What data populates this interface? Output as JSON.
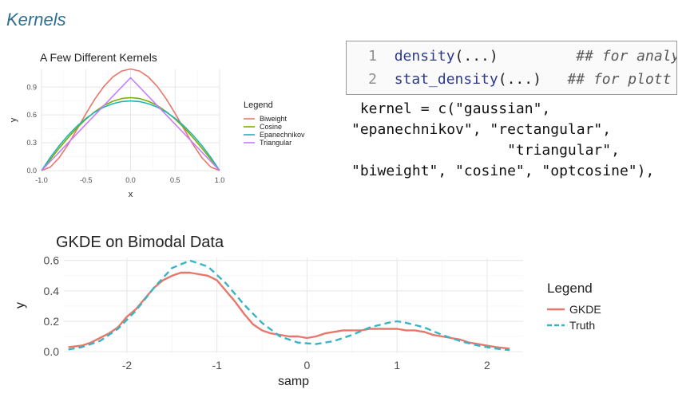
{
  "slide": {
    "title": "Kernels"
  },
  "code": {
    "lines": [
      {
        "num": "1",
        "fn": "density",
        "args": "(...)",
        "comment": "## for analy"
      },
      {
        "num": "2",
        "fn": "stat_density",
        "args": "(...)",
        "comment": "## for plott"
      }
    ],
    "kernel_text": " kernel = c(\"gaussian\",\n\"epanechnikov\", \"rectangular\",\n                  \"triangular\",\n\"biweight\", \"cosine\", \"optcosine\"),"
  },
  "chart_data": [
    {
      "type": "line",
      "title": "A Few Different Kernels",
      "xlabel": "x",
      "ylabel": "y",
      "xlim": [
        -1.0,
        1.0
      ],
      "ylim": [
        0,
        1.09
      ],
      "xticks": [
        "-1.0",
        "-0.5",
        "0.0",
        "0.5",
        "1.0"
      ],
      "yticks": [
        "0.0",
        "0.3",
        "0.6",
        "0.9"
      ],
      "grid": true,
      "legend": {
        "title": "Legend",
        "placement": "right"
      },
      "series": [
        {
          "name": "Biweight",
          "color": "#e8776b",
          "x": [
            -1.0,
            -0.9,
            -0.8,
            -0.7,
            -0.6,
            -0.5,
            -0.4,
            -0.3,
            -0.2,
            -0.1,
            0.0,
            0.1,
            0.2,
            0.3,
            0.4,
            0.5,
            0.6,
            0.7,
            0.8,
            0.9,
            1.0
          ],
          "y": [
            0.0,
            0.039,
            0.141,
            0.284,
            0.448,
            0.615,
            0.772,
            0.906,
            1.008,
            1.072,
            1.094,
            1.072,
            1.008,
            0.906,
            0.772,
            0.615,
            0.448,
            0.284,
            0.141,
            0.039,
            0.0
          ]
        },
        {
          "name": "Cosine",
          "color": "#7cae00",
          "x": [
            -1.0,
            -0.9,
            -0.8,
            -0.7,
            -0.6,
            -0.5,
            -0.4,
            -0.3,
            -0.2,
            -0.1,
            0.0,
            0.1,
            0.2,
            0.3,
            0.4,
            0.5,
            0.6,
            0.7,
            0.8,
            0.9,
            1.0
          ],
          "y": [
            0.0,
            0.123,
            0.243,
            0.357,
            0.462,
            0.555,
            0.635,
            0.7,
            0.747,
            0.776,
            0.785,
            0.776,
            0.747,
            0.7,
            0.635,
            0.555,
            0.462,
            0.357,
            0.243,
            0.123,
            0.0
          ]
        },
        {
          "name": "Epanechnikov",
          "color": "#1fb5b8",
          "x": [
            -1.0,
            -0.9,
            -0.8,
            -0.7,
            -0.6,
            -0.5,
            -0.4,
            -0.3,
            -0.2,
            -0.1,
            0.0,
            0.1,
            0.2,
            0.3,
            0.4,
            0.5,
            0.6,
            0.7,
            0.8,
            0.9,
            1.0
          ],
          "y": [
            0.0,
            0.143,
            0.27,
            0.383,
            0.48,
            0.563,
            0.63,
            0.683,
            0.72,
            0.743,
            0.75,
            0.743,
            0.72,
            0.683,
            0.63,
            0.563,
            0.48,
            0.383,
            0.27,
            0.143,
            0.0
          ]
        },
        {
          "name": "Triangular",
          "color": "#c77cff",
          "x": [
            -1.0,
            0.0,
            1.0
          ],
          "y": [
            0.0,
            1.0,
            0.0
          ]
        }
      ]
    },
    {
      "type": "line",
      "title": "GKDE on Bimodal Data",
      "xlabel": "samp",
      "ylabel": "y",
      "xlim": [
        -2.7,
        2.4
      ],
      "ylim": [
        -0.01,
        0.62
      ],
      "xticks": [
        "-2",
        "-1",
        "0",
        "1",
        "2"
      ],
      "yticks": [
        "0.0",
        "0.2",
        "0.4",
        "0.6"
      ],
      "grid": true,
      "legend": {
        "title": "Legend",
        "placement": "right"
      },
      "series": [
        {
          "name": "GKDE",
          "color": "#e8776b",
          "dashed": false,
          "x": [
            -2.65,
            -2.5,
            -2.4,
            -2.3,
            -2.2,
            -2.1,
            -2.0,
            -1.9,
            -1.8,
            -1.7,
            -1.6,
            -1.5,
            -1.4,
            -1.3,
            -1.2,
            -1.1,
            -1.0,
            -0.9,
            -0.8,
            -0.7,
            -0.6,
            -0.5,
            -0.4,
            -0.3,
            -0.2,
            -0.1,
            0.0,
            0.1,
            0.2,
            0.3,
            0.4,
            0.5,
            0.6,
            0.7,
            0.8,
            0.9,
            1.0,
            1.1,
            1.2,
            1.3,
            1.4,
            1.5,
            1.6,
            1.7,
            1.8,
            1.9,
            2.0,
            2.1,
            2.25
          ],
          "y": [
            0.03,
            0.04,
            0.06,
            0.09,
            0.12,
            0.16,
            0.23,
            0.28,
            0.35,
            0.42,
            0.47,
            0.5,
            0.52,
            0.52,
            0.51,
            0.5,
            0.47,
            0.4,
            0.33,
            0.25,
            0.18,
            0.14,
            0.12,
            0.11,
            0.1,
            0.1,
            0.09,
            0.1,
            0.12,
            0.13,
            0.14,
            0.14,
            0.14,
            0.15,
            0.15,
            0.15,
            0.15,
            0.14,
            0.14,
            0.13,
            0.11,
            0.1,
            0.09,
            0.08,
            0.06,
            0.05,
            0.04,
            0.03,
            0.02
          ]
        },
        {
          "name": "Truth",
          "color": "#3ab4c5",
          "dashed": true,
          "x": [
            -2.65,
            -2.5,
            -2.3,
            -2.1,
            -1.9,
            -1.7,
            -1.5,
            -1.3,
            -1.1,
            -0.9,
            -0.7,
            -0.5,
            -0.3,
            -0.1,
            0.1,
            0.3,
            0.5,
            0.7,
            0.9,
            1.0,
            1.1,
            1.3,
            1.5,
            1.7,
            1.9,
            2.1,
            2.25
          ],
          "y": [
            0.014,
            0.03,
            0.07,
            0.15,
            0.27,
            0.42,
            0.55,
            0.6,
            0.56,
            0.45,
            0.31,
            0.19,
            0.1,
            0.06,
            0.05,
            0.07,
            0.11,
            0.16,
            0.19,
            0.2,
            0.19,
            0.16,
            0.11,
            0.07,
            0.04,
            0.02,
            0.01
          ]
        }
      ]
    }
  ]
}
